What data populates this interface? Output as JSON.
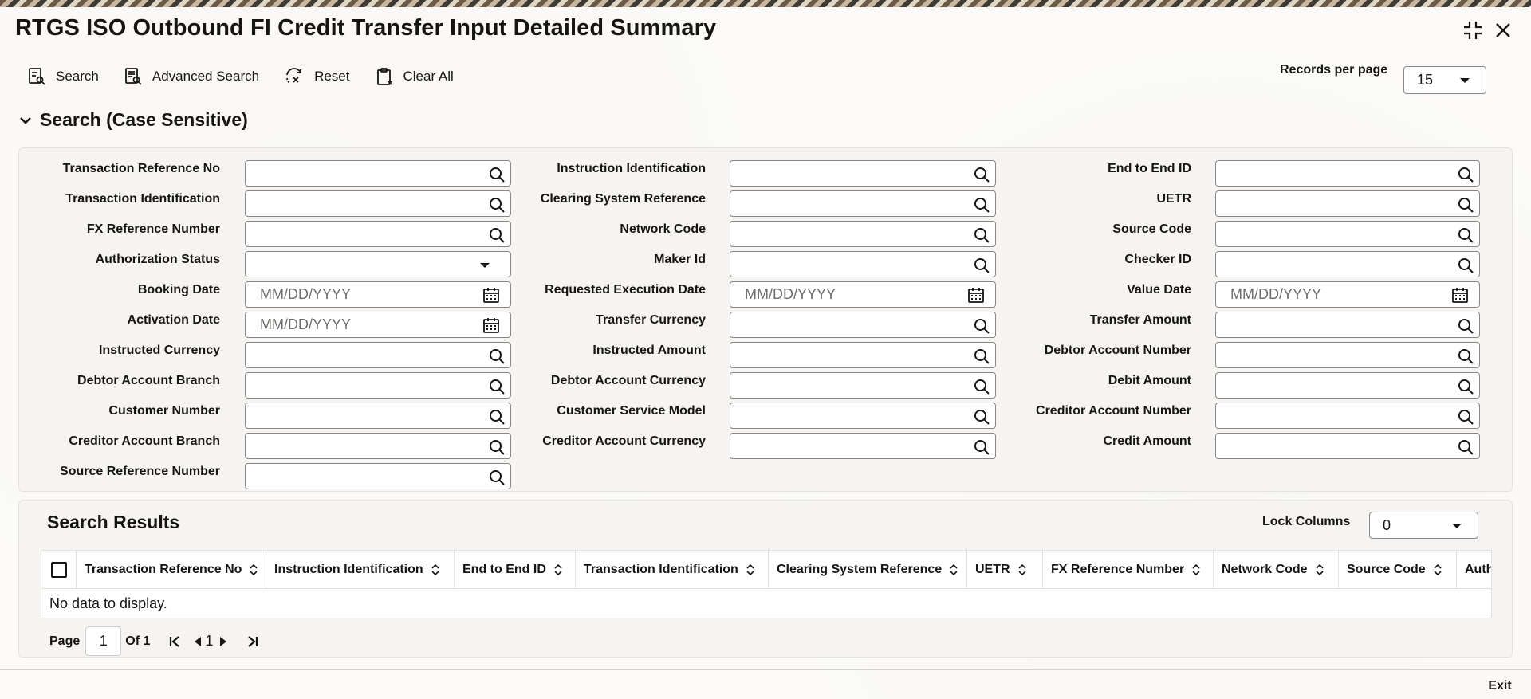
{
  "window": {
    "title": "RTGS ISO Outbound FI Credit Transfer Input Detailed Summary"
  },
  "toolbar": {
    "search_label": "Search",
    "advanced_search_label": "Advanced Search",
    "reset_label": "Reset",
    "clear_all_label": "Clear All",
    "records_per_page_label": "Records per page",
    "records_per_page_value": "15"
  },
  "search_section": {
    "title": "Search (Case Sensitive)",
    "fields": [
      {
        "label": "Transaction Reference No",
        "value": "",
        "placeholder": "",
        "type": "lookup"
      },
      {
        "label": "Transaction Identification",
        "value": "",
        "placeholder": "",
        "type": "lookup"
      },
      {
        "label": "FX Reference Number",
        "value": "",
        "placeholder": "",
        "type": "lookup"
      },
      {
        "label": "Authorization Status",
        "value": "",
        "placeholder": "",
        "type": "select"
      },
      {
        "label": "Booking Date",
        "value": "",
        "placeholder": "MM/DD/YYYY",
        "type": "date"
      },
      {
        "label": "Activation Date",
        "value": "",
        "placeholder": "MM/DD/YYYY",
        "type": "date"
      },
      {
        "label": "Instructed Currency",
        "value": "",
        "placeholder": "",
        "type": "lookup"
      },
      {
        "label": "Debtor Account Branch",
        "value": "",
        "placeholder": "",
        "type": "lookup"
      },
      {
        "label": "Customer Number",
        "value": "",
        "placeholder": "",
        "type": "lookup"
      },
      {
        "label": "Creditor Account Branch",
        "value": "",
        "placeholder": "",
        "type": "lookup"
      },
      {
        "label": "Source Reference Number",
        "value": "",
        "placeholder": "",
        "type": "lookup"
      },
      {
        "label": "Instruction Identification",
        "value": "",
        "placeholder": "",
        "type": "lookup"
      },
      {
        "label": "Clearing System Reference",
        "value": "",
        "placeholder": "",
        "type": "lookup"
      },
      {
        "label": "Network Code",
        "value": "",
        "placeholder": "",
        "type": "lookup"
      },
      {
        "label": "Maker Id",
        "value": "",
        "placeholder": "",
        "type": "lookup"
      },
      {
        "label": "Requested Execution Date",
        "value": "",
        "placeholder": "MM/DD/YYYY",
        "type": "date"
      },
      {
        "label": "Transfer Currency",
        "value": "",
        "placeholder": "",
        "type": "lookup"
      },
      {
        "label": "Instructed Amount",
        "value": "",
        "placeholder": "",
        "type": "lookup"
      },
      {
        "label": "Debtor Account Currency",
        "value": "",
        "placeholder": "",
        "type": "lookup"
      },
      {
        "label": "Customer Service Model",
        "value": "",
        "placeholder": "",
        "type": "lookup"
      },
      {
        "label": "Creditor Account Currency",
        "value": "",
        "placeholder": "",
        "type": "lookup"
      },
      {
        "label": "End to End ID",
        "value": "",
        "placeholder": "",
        "type": "lookup"
      },
      {
        "label": "UETR",
        "value": "",
        "placeholder": "",
        "type": "lookup"
      },
      {
        "label": "Source Code",
        "value": "",
        "placeholder": "",
        "type": "lookup"
      },
      {
        "label": "Checker ID",
        "value": "",
        "placeholder": "",
        "type": "lookup"
      },
      {
        "label": "Value Date",
        "value": "",
        "placeholder": "MM/DD/YYYY",
        "type": "date"
      },
      {
        "label": "Transfer Amount",
        "value": "",
        "placeholder": "",
        "type": "lookup"
      },
      {
        "label": "Debtor Account Number",
        "value": "",
        "placeholder": "",
        "type": "lookup"
      },
      {
        "label": "Debit Amount",
        "value": "",
        "placeholder": "",
        "type": "lookup"
      },
      {
        "label": "Creditor Account Number",
        "value": "",
        "placeholder": "",
        "type": "lookup"
      },
      {
        "label": "Credit Amount",
        "value": "",
        "placeholder": "",
        "type": "lookup"
      }
    ]
  },
  "results": {
    "title": "Search Results",
    "lock_columns_label": "Lock Columns",
    "lock_columns_value": "0",
    "columns": [
      "Transaction Reference No",
      "Instruction Identification",
      "End to End ID",
      "Transaction Identification",
      "Clearing System Reference",
      "UETR",
      "FX Reference Number",
      "Network Code",
      "Source Code",
      "Auth"
    ],
    "empty_message": "No data to display."
  },
  "pager": {
    "page_label": "Page",
    "current_page": "1",
    "of_label": "Of 1",
    "page_number": "1"
  },
  "footer": {
    "exit_label": "Exit"
  }
}
